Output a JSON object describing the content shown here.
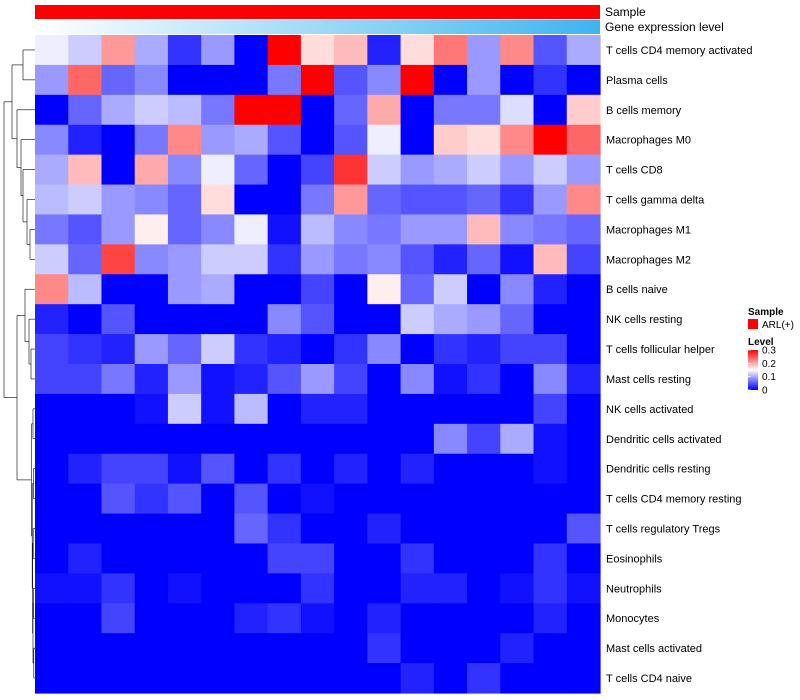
{
  "chart_data": {
    "type": "heatmap",
    "annotations": [
      {
        "name": "Sample",
        "color": "#ff0000"
      },
      {
        "name": "Gene expression level",
        "gradient": [
          "#ffffff",
          "#3fb4ee"
        ]
      }
    ],
    "rows": [
      "T cells CD4 memory activated",
      "Plasma cells",
      "B cells memory",
      "Macrophages M0",
      "T cells CD8",
      "T cells gamma delta",
      "Macrophages M1",
      "Macrophages M2",
      "B cells naive",
      "NK cells resting",
      "T cells follicular helper",
      "Mast cells resting",
      "NK cells activated",
      "Dendritic cells activated",
      "Dendritic cells resting",
      "T cells CD4 memory resting",
      "T cells regulatory  Tregs",
      "Eosinophils",
      "Neutrophils",
      "Monocytes",
      "Mast cells activated",
      "T cells CD4 naive"
    ],
    "values": [
      [
        0.14,
        0.12,
        0.21,
        0.1,
        0.03,
        0.09,
        0.0,
        0.3,
        0.17,
        0.19,
        0.02,
        0.17,
        0.23,
        0.09,
        0.22,
        0.05,
        0.1
      ],
      [
        0.09,
        0.24,
        0.06,
        0.08,
        0.0,
        0.0,
        0.0,
        0.07,
        0.31,
        0.05,
        0.08,
        0.32,
        0.0,
        0.09,
        0.0,
        0.03,
        0.0
      ],
      [
        0.0,
        0.06,
        0.1,
        0.12,
        0.11,
        0.07,
        0.3,
        0.3,
        0.0,
        0.06,
        0.2,
        0.0,
        0.07,
        0.07,
        0.13,
        0.0,
        0.18
      ],
      [
        0.08,
        0.02,
        0.0,
        0.07,
        0.22,
        0.09,
        0.1,
        0.05,
        0.0,
        0.05,
        0.14,
        0.0,
        0.18,
        0.17,
        0.22,
        0.31,
        0.24
      ],
      [
        0.1,
        0.19,
        0.0,
        0.2,
        0.08,
        0.14,
        0.06,
        0.0,
        0.04,
        0.27,
        0.12,
        0.09,
        0.1,
        0.12,
        0.09,
        0.12,
        0.09
      ],
      [
        0.11,
        0.12,
        0.09,
        0.08,
        0.06,
        0.17,
        0.0,
        0.0,
        0.07,
        0.21,
        0.06,
        0.05,
        0.05,
        0.06,
        0.03,
        0.09,
        0.22
      ],
      [
        0.07,
        0.05,
        0.09,
        0.16,
        0.06,
        0.08,
        0.14,
        0.01,
        0.11,
        0.08,
        0.07,
        0.09,
        0.09,
        0.19,
        0.08,
        0.07,
        0.06
      ],
      [
        0.12,
        0.06,
        0.26,
        0.08,
        0.09,
        0.12,
        0.12,
        0.03,
        0.09,
        0.07,
        0.08,
        0.05,
        0.02,
        0.06,
        0.01,
        0.19,
        0.04
      ],
      [
        0.22,
        0.11,
        0.0,
        0.0,
        0.09,
        0.1,
        0.0,
        0.0,
        0.04,
        0.0,
        0.16,
        0.06,
        0.12,
        0.0,
        0.08,
        0.02,
        0.0
      ],
      [
        0.02,
        0.0,
        0.05,
        0.0,
        0.0,
        0.0,
        0.0,
        0.08,
        0.05,
        0.0,
        0.0,
        0.12,
        0.1,
        0.09,
        0.06,
        0.0,
        0.0
      ],
      [
        0.04,
        0.03,
        0.02,
        0.09,
        0.06,
        0.12,
        0.03,
        0.02,
        0.0,
        0.03,
        0.08,
        0.0,
        0.03,
        0.02,
        0.04,
        0.04,
        0.0
      ],
      [
        0.04,
        0.04,
        0.07,
        0.02,
        0.09,
        0.01,
        0.02,
        0.05,
        0.09,
        0.04,
        0.0,
        0.08,
        0.01,
        0.03,
        0.0,
        0.08,
        0.02
      ],
      [
        0.0,
        0.0,
        0.0,
        0.01,
        0.12,
        0.01,
        0.11,
        0.0,
        0.02,
        0.02,
        0.0,
        0.0,
        0.0,
        0.0,
        0.0,
        0.04,
        0.0
      ],
      [
        0.0,
        0.0,
        0.0,
        0.0,
        0.0,
        0.0,
        0.0,
        0.0,
        0.0,
        0.0,
        0.0,
        0.0,
        0.08,
        0.04,
        0.1,
        0.01,
        0.0
      ],
      [
        0.0,
        0.02,
        0.04,
        0.04,
        0.01,
        0.05,
        0.0,
        0.03,
        0.0,
        0.02,
        0.0,
        0.02,
        0.0,
        0.0,
        0.0,
        0.01,
        0.0
      ],
      [
        0.0,
        0.0,
        0.05,
        0.03,
        0.05,
        0.0,
        0.05,
        0.0,
        0.01,
        0.0,
        0.0,
        0.0,
        0.0,
        0.0,
        0.0,
        0.0,
        0.0
      ],
      [
        0.0,
        0.0,
        0.0,
        0.0,
        0.0,
        0.0,
        0.06,
        0.03,
        0.0,
        0.0,
        0.02,
        0.0,
        0.0,
        0.0,
        0.0,
        0.0,
        0.05
      ],
      [
        0.0,
        0.02,
        0.0,
        0.0,
        0.0,
        0.0,
        0.0,
        0.04,
        0.04,
        0.0,
        0.0,
        0.03,
        0.0,
        0.0,
        0.0,
        0.03,
        0.0
      ],
      [
        0.01,
        0.01,
        0.03,
        0.0,
        0.01,
        0.0,
        0.0,
        0.0,
        0.03,
        0.0,
        0.0,
        0.02,
        0.02,
        0.0,
        0.01,
        0.03,
        0.01
      ],
      [
        0.0,
        0.0,
        0.04,
        0.0,
        0.0,
        0.0,
        0.02,
        0.03,
        0.01,
        0.0,
        0.02,
        0.0,
        0.0,
        0.0,
        0.0,
        0.02,
        0.0
      ],
      [
        0.0,
        0.0,
        0.0,
        0.0,
        0.0,
        0.0,
        0.0,
        0.0,
        0.0,
        0.0,
        0.03,
        0.0,
        0.0,
        0.0,
        0.02,
        0.0,
        0.0
      ],
      [
        0.0,
        0.0,
        0.0,
        0.0,
        0.0,
        0.0,
        0.0,
        0.0,
        0.0,
        0.0,
        0.0,
        0.02,
        0.0,
        0.03,
        0.0,
        0.0,
        0.0
      ]
    ],
    "color_scale": {
      "min": 0,
      "mid": 0.15,
      "max": 0.3,
      "low": "#0000ff",
      "mid_color": "#ffffff",
      "high": "#ff0000"
    },
    "legend": {
      "sample_title": "Sample",
      "sample_entry": "ARL(+)",
      "level_title": "Level",
      "ticks": [
        "0.3",
        "0.2",
        "0.1",
        "0"
      ]
    }
  }
}
